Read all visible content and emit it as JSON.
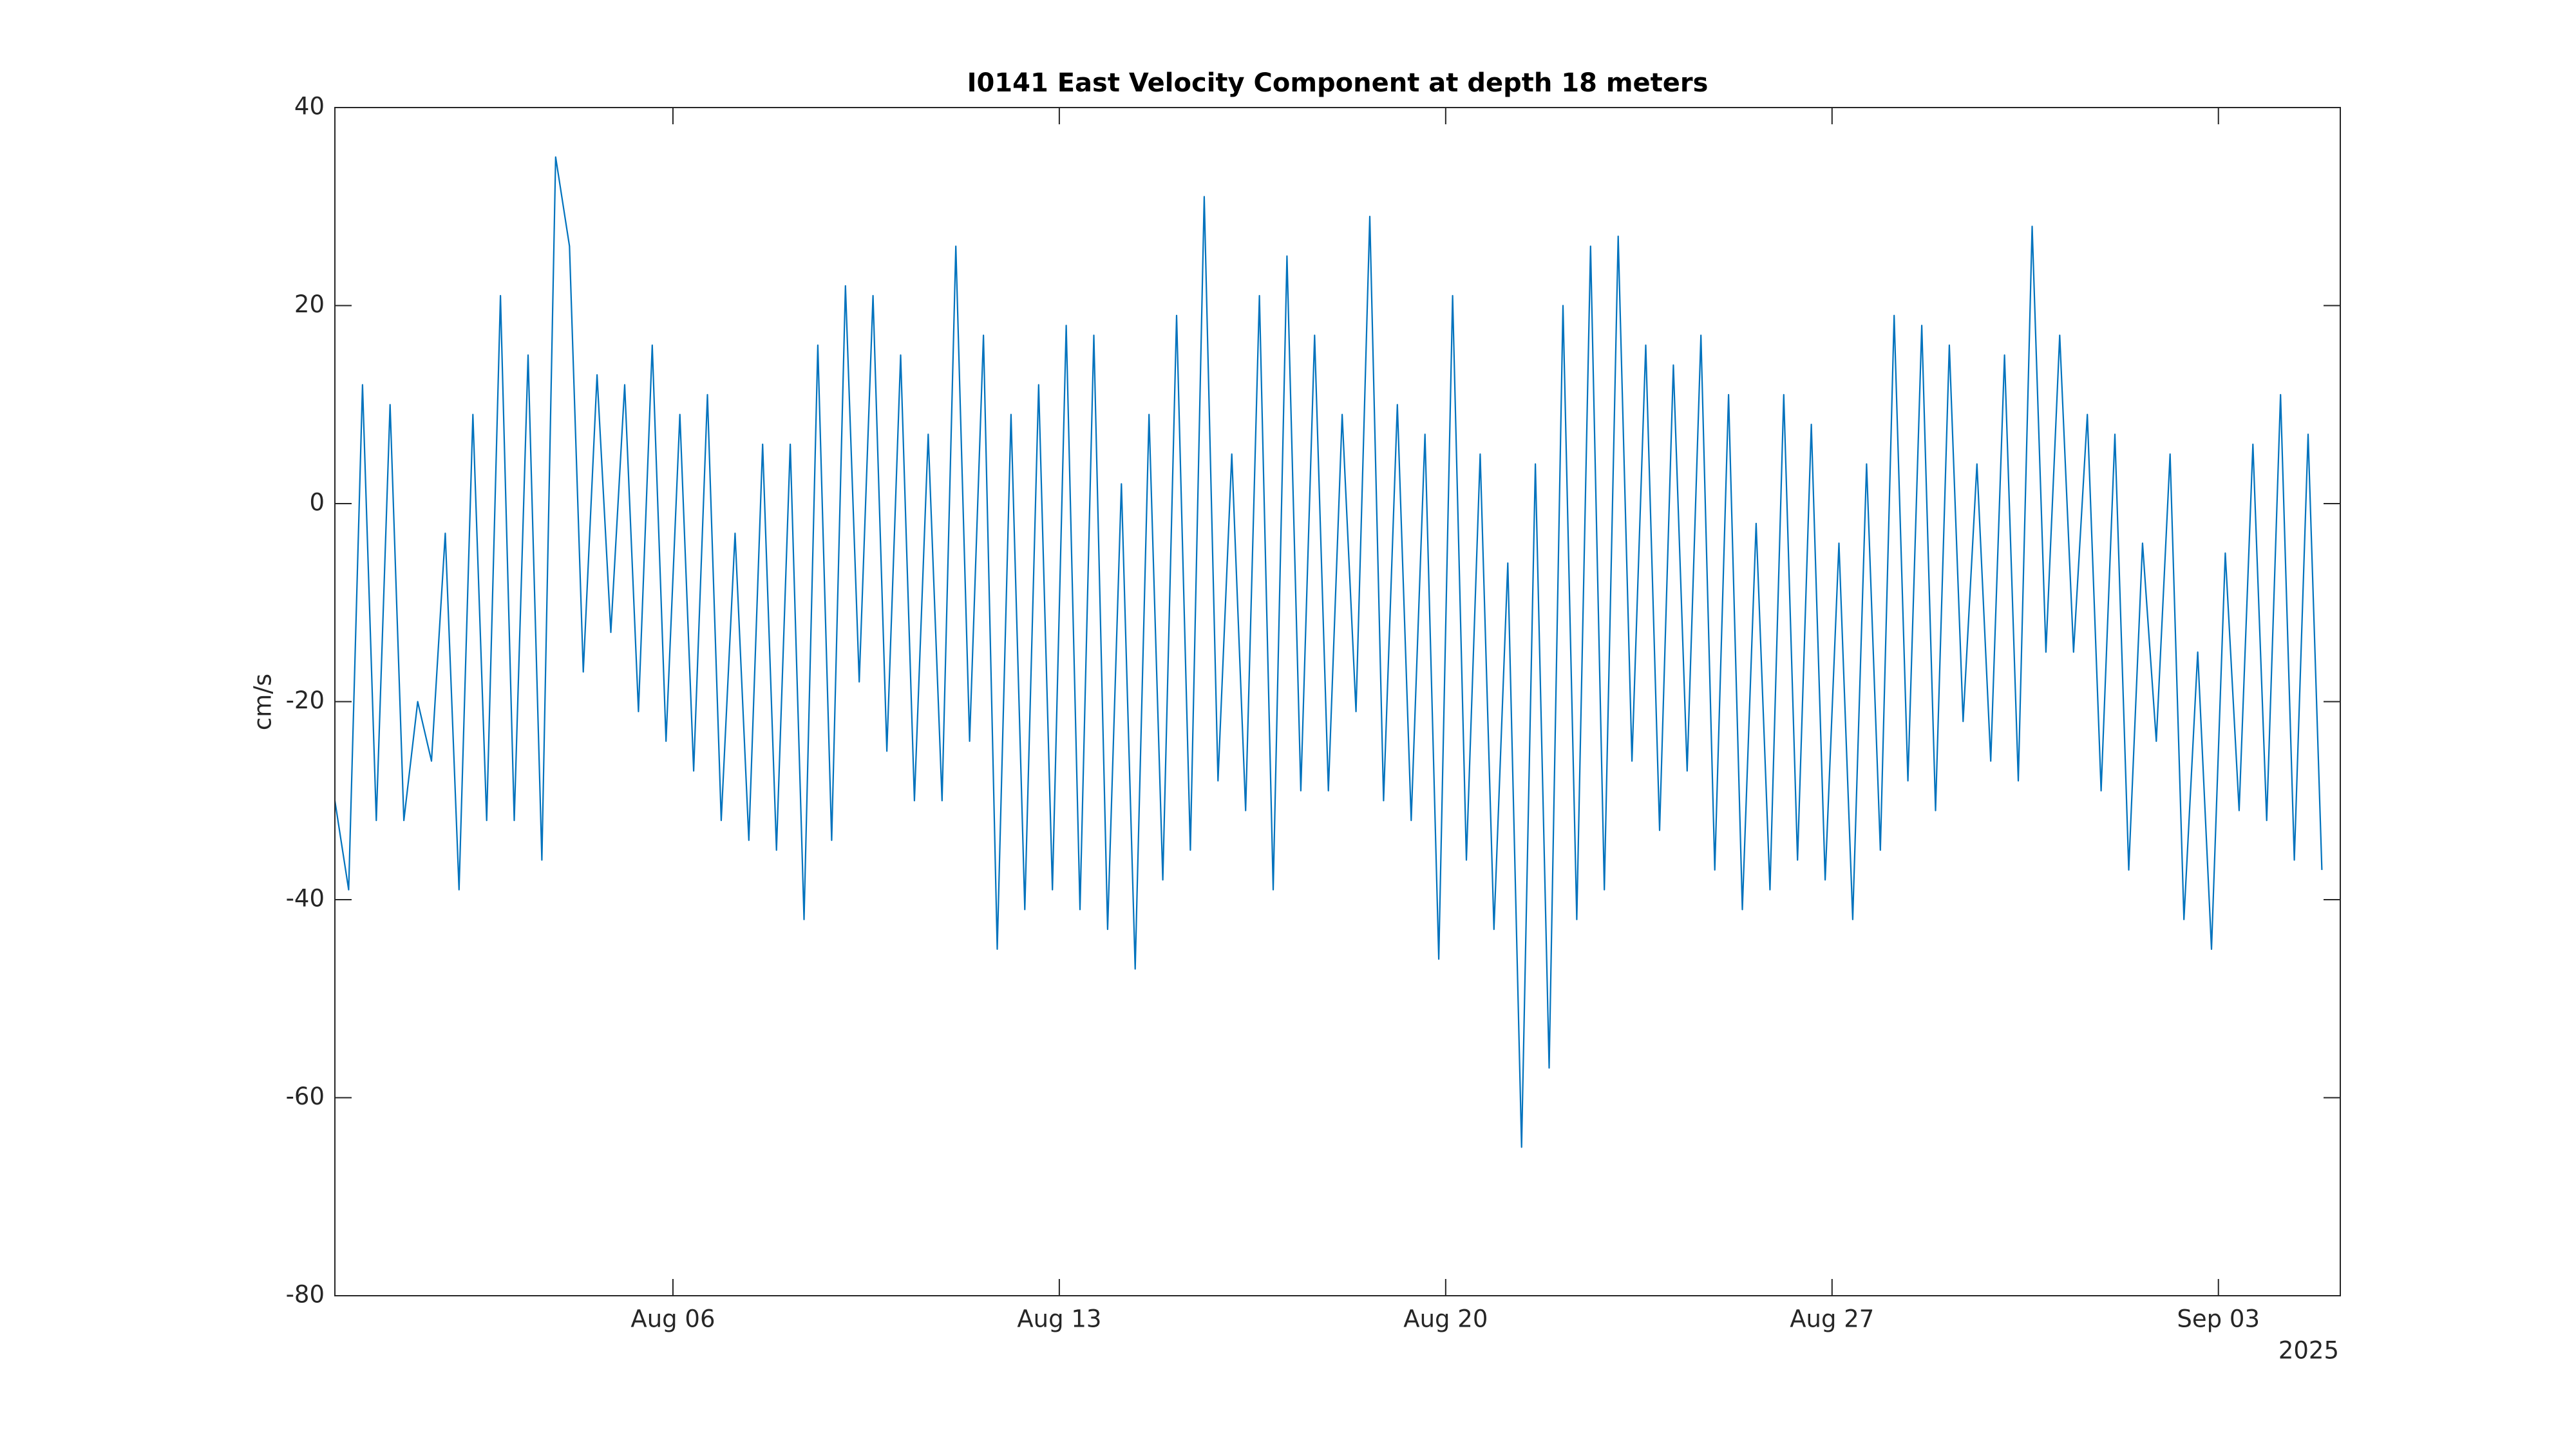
{
  "chart_data": {
    "type": "line",
    "title": "I0141 East Velocity Component at depth 18 meters",
    "ylabel": "cm/s",
    "x_secondary_label": "2025",
    "xlim": [
      "2025-07-30T21:00",
      "2025-09-05T05:00"
    ],
    "xticks": [
      {
        "value": "2025-08-06",
        "label": "Aug 06"
      },
      {
        "value": "2025-08-13",
        "label": "Aug 13"
      },
      {
        "value": "2025-08-20",
        "label": "Aug 20"
      },
      {
        "value": "2025-08-27",
        "label": "Aug 27"
      },
      {
        "value": "2025-09-03",
        "label": "Sep 03"
      }
    ],
    "ylim": [
      -80,
      40
    ],
    "yticks": [
      -80,
      -60,
      -40,
      -20,
      0,
      20,
      40
    ],
    "grid": false,
    "x": [
      "2025-07-30T21:00",
      "2025-07-31T03:00",
      "2025-07-31T09:00",
      "2025-07-31T15:00",
      "2025-07-31T21:00",
      "2025-08-01T03:00",
      "2025-08-01T09:00",
      "2025-08-01T15:00",
      "2025-08-01T21:00",
      "2025-08-02T03:00",
      "2025-08-02T09:00",
      "2025-08-02T15:00",
      "2025-08-02T21:00",
      "2025-08-03T03:00",
      "2025-08-03T09:00",
      "2025-08-03T15:00",
      "2025-08-03T21:00",
      "2025-08-04T03:00",
      "2025-08-04T09:00",
      "2025-08-04T15:00",
      "2025-08-04T21:00",
      "2025-08-05T03:00",
      "2025-08-05T09:00",
      "2025-08-05T15:00",
      "2025-08-05T21:00",
      "2025-08-06T03:00",
      "2025-08-06T09:00",
      "2025-08-06T15:00",
      "2025-08-06T21:00",
      "2025-08-07T03:00",
      "2025-08-07T09:00",
      "2025-08-07T15:00",
      "2025-08-07T21:00",
      "2025-08-08T03:00",
      "2025-08-08T09:00",
      "2025-08-08T15:00",
      "2025-08-08T21:00",
      "2025-08-09T03:00",
      "2025-08-09T09:00",
      "2025-08-09T15:00",
      "2025-08-09T21:00",
      "2025-08-10T03:00",
      "2025-08-10T09:00",
      "2025-08-10T15:00",
      "2025-08-10T21:00",
      "2025-08-11T03:00",
      "2025-08-11T09:00",
      "2025-08-11T15:00",
      "2025-08-11T21:00",
      "2025-08-12T03:00",
      "2025-08-12T09:00",
      "2025-08-12T15:00",
      "2025-08-12T21:00",
      "2025-08-13T03:00",
      "2025-08-13T09:00",
      "2025-08-13T15:00",
      "2025-08-13T21:00",
      "2025-08-14T03:00",
      "2025-08-14T09:00",
      "2025-08-14T15:00",
      "2025-08-14T21:00",
      "2025-08-15T03:00",
      "2025-08-15T09:00",
      "2025-08-15T15:00",
      "2025-08-15T21:00",
      "2025-08-16T03:00",
      "2025-08-16T09:00",
      "2025-08-16T15:00",
      "2025-08-16T21:00",
      "2025-08-17T03:00",
      "2025-08-17T09:00",
      "2025-08-17T15:00",
      "2025-08-17T21:00",
      "2025-08-18T03:00",
      "2025-08-18T09:00",
      "2025-08-18T15:00",
      "2025-08-18T21:00",
      "2025-08-19T03:00",
      "2025-08-19T09:00",
      "2025-08-19T15:00",
      "2025-08-19T21:00",
      "2025-08-20T03:00",
      "2025-08-20T09:00",
      "2025-08-20T15:00",
      "2025-08-20T21:00",
      "2025-08-21T03:00",
      "2025-08-21T09:00",
      "2025-08-21T15:00",
      "2025-08-21T21:00",
      "2025-08-22T03:00",
      "2025-08-22T09:00",
      "2025-08-22T15:00",
      "2025-08-22T21:00",
      "2025-08-23T03:00",
      "2025-08-23T09:00",
      "2025-08-23T15:00",
      "2025-08-23T21:00",
      "2025-08-24T03:00",
      "2025-08-24T09:00",
      "2025-08-24T15:00",
      "2025-08-24T21:00",
      "2025-08-25T03:00",
      "2025-08-25T09:00",
      "2025-08-25T15:00",
      "2025-08-25T21:00",
      "2025-08-26T03:00",
      "2025-08-26T09:00",
      "2025-08-26T15:00",
      "2025-08-26T21:00",
      "2025-08-27T03:00",
      "2025-08-27T09:00",
      "2025-08-27T15:00",
      "2025-08-27T21:00",
      "2025-08-28T03:00",
      "2025-08-28T09:00",
      "2025-08-28T15:00",
      "2025-08-28T21:00",
      "2025-08-29T03:00",
      "2025-08-29T09:00",
      "2025-08-29T15:00",
      "2025-08-29T21:00",
      "2025-08-30T03:00",
      "2025-08-30T09:00",
      "2025-08-30T15:00",
      "2025-08-30T21:00",
      "2025-08-31T03:00",
      "2025-08-31T09:00",
      "2025-08-31T15:00",
      "2025-08-31T21:00",
      "2025-09-01T03:00",
      "2025-09-01T09:00",
      "2025-09-01T15:00",
      "2025-09-01T21:00",
      "2025-09-02T03:00",
      "2025-09-02T09:00",
      "2025-09-02T15:00",
      "2025-09-02T21:00",
      "2025-09-03T03:00",
      "2025-09-03T09:00",
      "2025-09-03T15:00",
      "2025-09-03T21:00",
      "2025-09-04T03:00",
      "2025-09-04T09:00",
      "2025-09-04T15:00",
      "2025-09-04T21:00"
    ],
    "series": [
      {
        "color": "#0072bd",
        "values": [
          -30,
          -39,
          12,
          -32,
          10,
          -32,
          -20,
          -26,
          -3,
          -39,
          9,
          -32,
          21,
          -32,
          15,
          -36,
          35,
          26,
          -17,
          13,
          -13,
          12,
          -21,
          16,
          -24,
          9,
          -27,
          11,
          -32,
          -3,
          -34,
          6,
          -35,
          6,
          -42,
          16,
          -34,
          22,
          -18,
          21,
          -25,
          15,
          -30,
          7,
          -30,
          26,
          -24,
          17,
          -45,
          9,
          -41,
          12,
          -39,
          18,
          -41,
          17,
          -43,
          2,
          -47,
          9,
          -38,
          19,
          -35,
          31,
          -28,
          5,
          -31,
          21,
          -39,
          25,
          -29,
          17,
          -29,
          9,
          -21,
          29,
          -30,
          10,
          -32,
          7,
          -46,
          21,
          -36,
          5,
          -43,
          -6,
          -65,
          4,
          -57,
          20,
          -42,
          26,
          -39,
          27,
          -26,
          16,
          -33,
          14,
          -27,
          17,
          -37,
          11,
          -41,
          -2,
          -39,
          11,
          -36,
          8,
          -38,
          -4,
          -42,
          4,
          -35,
          19,
          -28,
          18,
          -31,
          16,
          -22,
          4,
          -26,
          15,
          -28,
          28,
          -15,
          17,
          -15,
          9,
          -29,
          7,
          -37,
          -4,
          -24,
          5,
          -42,
          -15,
          -45,
          -5,
          -31,
          6,
          -32,
          11,
          -36,
          7,
          -37
        ]
      }
    ]
  }
}
